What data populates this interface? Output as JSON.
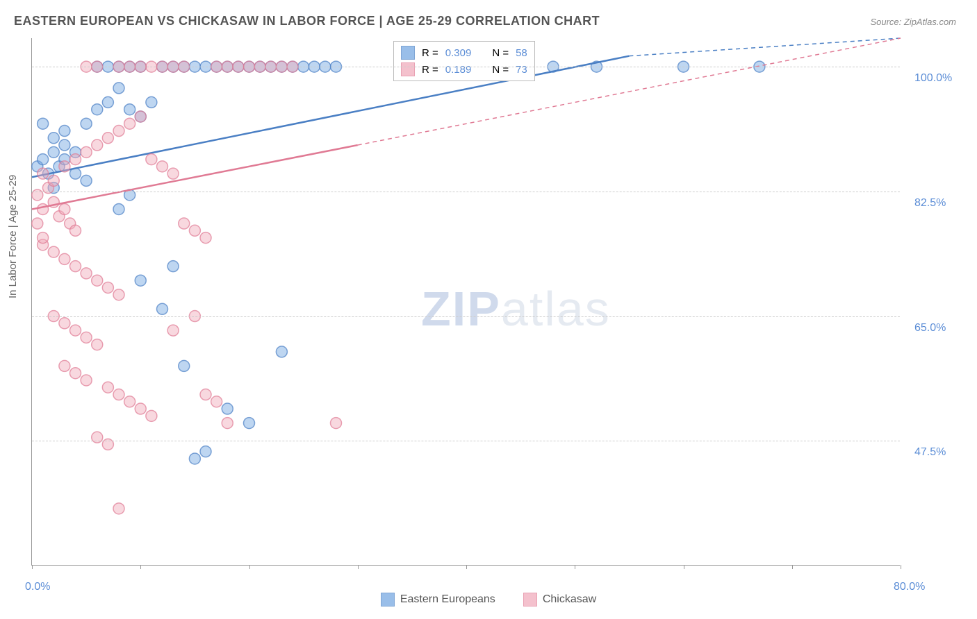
{
  "title": "EASTERN EUROPEAN VS CHICKASAW IN LABOR FORCE | AGE 25-29 CORRELATION CHART",
  "source": "Source: ZipAtlas.com",
  "watermark_a": "ZIP",
  "watermark_b": "atlas",
  "y_axis_title": "In Labor Force | Age 25-29",
  "chart": {
    "type": "scatter",
    "background_color": "#ffffff",
    "grid_color": "#cccccc",
    "axis_color": "#999999",
    "text_color": "#666666",
    "tick_label_color": "#5b8dd6",
    "xlim": [
      0,
      80
    ],
    "ylim": [
      30,
      104
    ],
    "x_ticks": [
      0,
      10,
      20,
      30,
      40,
      50,
      60,
      70,
      80
    ],
    "x_tick_labels": {
      "0": "0.0%",
      "80": "80.0%"
    },
    "y_ticks": [
      47.5,
      65.0,
      82.5,
      100.0
    ],
    "y_tick_labels": [
      "47.5%",
      "65.0%",
      "82.5%",
      "100.0%"
    ],
    "marker_radius": 8,
    "marker_opacity": 0.45,
    "marker_stroke_width": 1.5,
    "series": [
      {
        "name": "Eastern Europeans",
        "color": "#6fa3e0",
        "stroke": "#4a7fc4",
        "R": "0.309",
        "N": "58",
        "trend": {
          "x1": 0,
          "y1": 84.5,
          "x2": 55,
          "y2": 101.5,
          "dash_to_x": 80
        },
        "points": [
          [
            0.5,
            86
          ],
          [
            1,
            87
          ],
          [
            1.5,
            85
          ],
          [
            2,
            88
          ],
          [
            2.5,
            86
          ],
          [
            3,
            89
          ],
          [
            4,
            88
          ],
          [
            1,
            92
          ],
          [
            2,
            90
          ],
          [
            3,
            91
          ],
          [
            5,
            92
          ],
          [
            6,
            94
          ],
          [
            7,
            95
          ],
          [
            8,
            97
          ],
          [
            9,
            94
          ],
          [
            10,
            93
          ],
          [
            11,
            95
          ],
          [
            12,
            100
          ],
          [
            13,
            100
          ],
          [
            14,
            100
          ],
          [
            15,
            100
          ],
          [
            16,
            100
          ],
          [
            17,
            100
          ],
          [
            18,
            100
          ],
          [
            19,
            100
          ],
          [
            20,
            100
          ],
          [
            21,
            100
          ],
          [
            22,
            100
          ],
          [
            23,
            100
          ],
          [
            24,
            100
          ],
          [
            25,
            100
          ],
          [
            26,
            100
          ],
          [
            27,
            100
          ],
          [
            28,
            100
          ],
          [
            6,
            100
          ],
          [
            7,
            100
          ],
          [
            8,
            100
          ],
          [
            9,
            100
          ],
          [
            10,
            100
          ],
          [
            48,
            100
          ],
          [
            52,
            100
          ],
          [
            60,
            100
          ],
          [
            67,
            100
          ],
          [
            10,
            70
          ],
          [
            13,
            72
          ],
          [
            14,
            58
          ],
          [
            15,
            45
          ],
          [
            16,
            46
          ],
          [
            23,
            60
          ],
          [
            18,
            52
          ],
          [
            20,
            50
          ],
          [
            8,
            80
          ],
          [
            9,
            82
          ],
          [
            5,
            84
          ],
          [
            4,
            85
          ],
          [
            3,
            87
          ],
          [
            2,
            83
          ],
          [
            12,
            66
          ]
        ]
      },
      {
        "name": "Chickasaw",
        "color": "#f0a8b8",
        "stroke": "#e07a94",
        "R": "0.189",
        "N": "73",
        "trend": {
          "x1": 0,
          "y1": 80,
          "x2": 30,
          "y2": 89,
          "dash_to_x": 80
        },
        "points": [
          [
            0.5,
            82
          ],
          [
            1,
            80
          ],
          [
            1.5,
            83
          ],
          [
            2,
            81
          ],
          [
            2.5,
            79
          ],
          [
            3,
            80
          ],
          [
            3.5,
            78
          ],
          [
            4,
            77
          ],
          [
            1,
            85
          ],
          [
            2,
            84
          ],
          [
            3,
            86
          ],
          [
            4,
            87
          ],
          [
            5,
            88
          ],
          [
            6,
            89
          ],
          [
            7,
            90
          ],
          [
            8,
            91
          ],
          [
            9,
            92
          ],
          [
            10,
            93
          ],
          [
            11,
            87
          ],
          [
            12,
            86
          ],
          [
            13,
            85
          ],
          [
            1,
            75
          ],
          [
            2,
            74
          ],
          [
            3,
            73
          ],
          [
            4,
            72
          ],
          [
            5,
            71
          ],
          [
            6,
            70
          ],
          [
            7,
            69
          ],
          [
            8,
            68
          ],
          [
            2,
            65
          ],
          [
            3,
            64
          ],
          [
            4,
            63
          ],
          [
            5,
            62
          ],
          [
            6,
            61
          ],
          [
            3,
            58
          ],
          [
            4,
            57
          ],
          [
            5,
            56
          ],
          [
            7,
            55
          ],
          [
            8,
            54
          ],
          [
            9,
            53
          ],
          [
            10,
            52
          ],
          [
            11,
            51
          ],
          [
            6,
            48
          ],
          [
            7,
            47
          ],
          [
            8,
            38
          ],
          [
            13,
            63
          ],
          [
            14,
            78
          ],
          [
            15,
            77
          ],
          [
            16,
            76
          ],
          [
            17,
            100
          ],
          [
            18,
            100
          ],
          [
            19,
            100
          ],
          [
            20,
            100
          ],
          [
            21,
            100
          ],
          [
            22,
            100
          ],
          [
            23,
            100
          ],
          [
            24,
            100
          ],
          [
            16,
            54
          ],
          [
            17,
            53
          ],
          [
            18,
            50
          ],
          [
            28,
            50
          ],
          [
            15,
            65
          ],
          [
            11,
            100
          ],
          [
            12,
            100
          ],
          [
            13,
            100
          ],
          [
            14,
            100
          ],
          [
            9,
            100
          ],
          [
            10,
            100
          ],
          [
            5,
            100
          ],
          [
            6,
            100
          ],
          [
            0.5,
            78
          ],
          [
            1,
            76
          ],
          [
            8,
            100
          ]
        ]
      }
    ]
  },
  "legend_top": {
    "r_label": "R =",
    "n_label": "N ="
  },
  "legend_bottom": {
    "series1": "Eastern Europeans",
    "series2": "Chickasaw"
  }
}
